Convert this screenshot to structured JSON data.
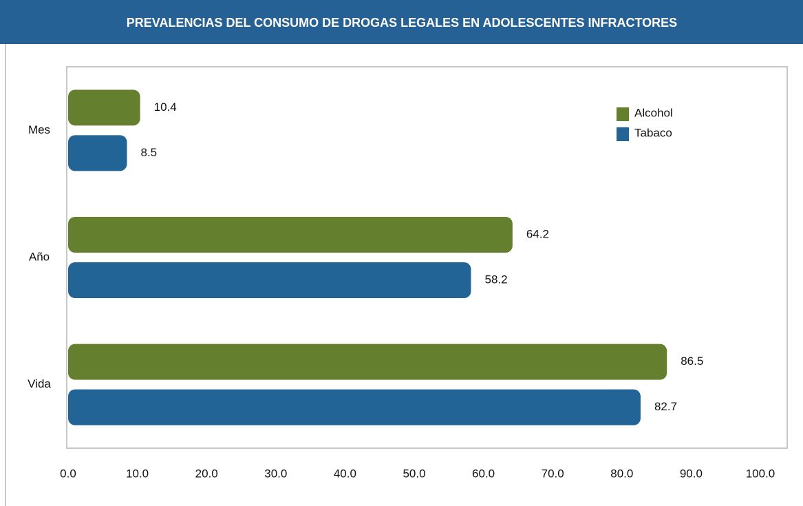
{
  "chart_data": {
    "type": "bar",
    "orientation": "horizontal",
    "title": "PREVALENCIAS DEL CONSUMO DE DROGAS LEGALES EN ADOLESCENTES INFRACTORES",
    "categories": [
      "Mes",
      "Año",
      "Vida"
    ],
    "series": [
      {
        "name": "Alcohol",
        "color": "#647f2d",
        "values": [
          10.4,
          64.2,
          86.5
        ]
      },
      {
        "name": "Tabaco",
        "color": "#236496",
        "values": [
          8.5,
          58.2,
          82.7
        ]
      }
    ],
    "xlim": [
      0,
      100
    ],
    "xticks": [
      {
        "value": 0,
        "label": "0.0"
      },
      {
        "value": 10,
        "label": "10.0"
      },
      {
        "value": 20,
        "label": "20.0"
      },
      {
        "value": 30,
        "label": "30.0"
      },
      {
        "value": 40,
        "label": "40.0"
      },
      {
        "value": 50,
        "label": "50.0"
      },
      {
        "value": 60,
        "label": "60.0"
      },
      {
        "value": 70,
        "label": "70.0"
      },
      {
        "value": 80,
        "label": "80.0"
      },
      {
        "value": 90,
        "label": "90.0"
      },
      {
        "value": 100,
        "label": "100.0"
      }
    ],
    "legend": "upper right"
  }
}
